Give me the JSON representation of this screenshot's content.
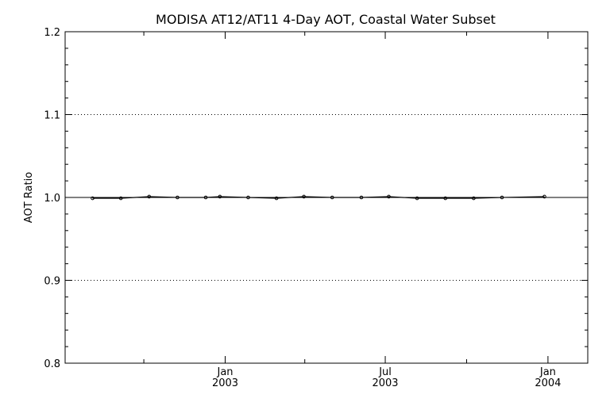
{
  "chart_data": {
    "type": "line",
    "title": "MODISA AT12/AT11 4-Day AOT, Coastal Water Subset",
    "xlabel": "",
    "ylabel": "AOT Ratio",
    "ylim": [
      0.8,
      1.2
    ],
    "xlim": [
      "2002-07-04",
      "2004-02-15"
    ],
    "grid": "horizontal dotted",
    "legend": "none",
    "reference_line": 1.0,
    "y_ticks": [
      "0.8",
      "0.9",
      "1.0",
      "1.1",
      "1.2"
    ],
    "x_ticks": [
      {
        "date": "2003-01-01",
        "line1": "Jan",
        "line2": "2003"
      },
      {
        "date": "2003-07-01",
        "line1": "Jul",
        "line2": "2003"
      },
      {
        "date": "2004-01-01",
        "line1": "Jan",
        "line2": "2004"
      }
    ],
    "x_minor_ticks": [
      "2002-10-01",
      "2003-04-01",
      "2003-10-01"
    ],
    "series": [
      {
        "x": [
          "2002-08-04",
          "2002-09-05",
          "2002-10-07",
          "2002-11-08",
          "2002-12-10",
          "2002-12-26",
          "2003-01-27",
          "2003-02-28",
          "2003-03-31",
          "2003-05-02",
          "2003-06-04",
          "2003-07-05",
          "2003-08-06",
          "2003-09-07",
          "2003-10-09",
          "2003-11-10",
          "2003-12-28"
        ],
        "values": [
          0.999,
          0.999,
          1.001,
          1.0,
          1.0,
          1.001,
          1.0,
          0.999,
          1.001,
          1.0,
          1.0,
          1.001,
          0.999,
          0.999,
          0.999,
          1.0,
          1.001
        ]
      }
    ],
    "colors": {
      "line": "#000000",
      "grid": "#000000",
      "background": "#ffffff"
    }
  }
}
